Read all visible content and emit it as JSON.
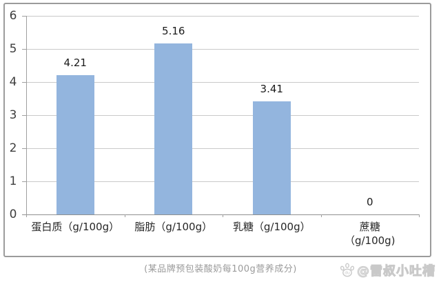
{
  "chart_data": {
    "type": "bar",
    "categories": [
      "蛋白质（g/100g）",
      "脂肪（g/100g）",
      "乳糖（g/100g）",
      "蔗糖\n（g/100g)"
    ],
    "values": [
      4.21,
      5.16,
      3.41,
      0
    ],
    "data_labels": [
      "4.21",
      "5.16",
      "3.41",
      "0"
    ],
    "title": "",
    "xlabel": "",
    "ylabel": "",
    "ylim": [
      0,
      6
    ],
    "yticks": [
      "0",
      "1",
      "2",
      "3",
      "4",
      "5",
      "6"
    ],
    "grid": true,
    "legend": false,
    "bar_color": "#93B5DE",
    "gridline_color": "#c9c9c9",
    "axis_color": "#9e9e9e",
    "frame_border_color": "#9b9b9b"
  },
  "caption": "(某品牌预包装酸奶每100g营养成分)",
  "watermark": {
    "icon": "baidu-paw-icon",
    "text": "@雷叔小吐槽",
    "color": "#c9c9c9"
  }
}
